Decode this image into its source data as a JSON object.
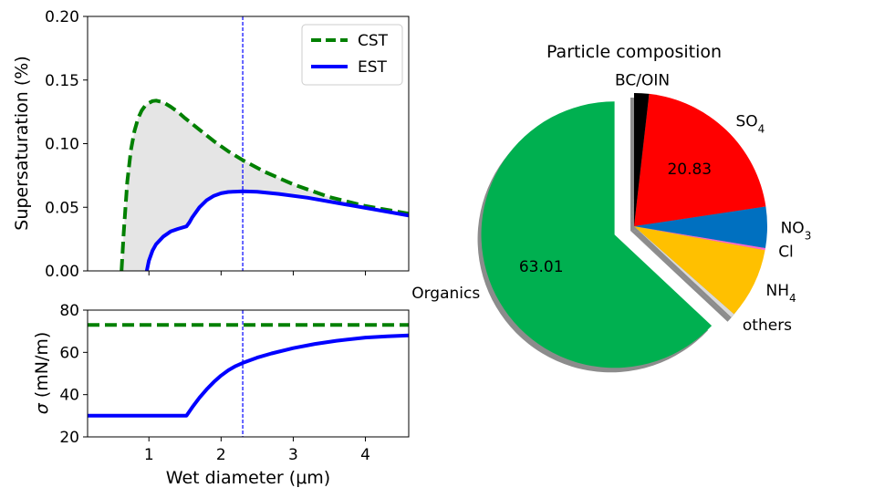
{
  "chart_data": [
    {
      "type": "line",
      "panel": "top-left",
      "ylabel": "Supersaturation (%)",
      "xlim": [
        0.15,
        4.6
      ],
      "ylim": [
        0,
        0.2
      ],
      "yticks": [
        "0.00",
        "0.05",
        "0.10",
        "0.15",
        "0.20"
      ],
      "xticks": [
        1,
        2,
        3,
        4
      ],
      "vline_x": 2.3,
      "shaded_between_series": true,
      "legend": {
        "position": "top-right"
      },
      "series": [
        {
          "name": "CST",
          "color": "#008000",
          "style": "dashed",
          "x": [
            0.62,
            0.65,
            0.7,
            0.75,
            0.8,
            0.85,
            0.9,
            0.95,
            1.0,
            1.05,
            1.1,
            1.2,
            1.3,
            1.4,
            1.5,
            1.7,
            1.9,
            2.1,
            2.3,
            2.6,
            3.0,
            3.5,
            4.0,
            4.6
          ],
          "y": [
            0.0,
            0.03,
            0.07,
            0.095,
            0.11,
            0.12,
            0.126,
            0.13,
            0.132,
            0.1335,
            0.1338,
            0.1325,
            0.129,
            0.125,
            0.12,
            0.111,
            0.102,
            0.094,
            0.087,
            0.078,
            0.068,
            0.058,
            0.051,
            0.045
          ]
        },
        {
          "name": "EST",
          "color": "#0000ff",
          "style": "solid",
          "x": [
            0.97,
            1.0,
            1.05,
            1.1,
            1.2,
            1.3,
            1.4,
            1.52,
            1.56,
            1.6,
            1.7,
            1.8,
            1.9,
            2.0,
            2.1,
            2.2,
            2.3,
            2.5,
            2.8,
            3.2,
            3.6,
            4.0,
            4.6
          ],
          "y": [
            0.0,
            0.008,
            0.016,
            0.021,
            0.027,
            0.031,
            0.033,
            0.035,
            0.038,
            0.042,
            0.05,
            0.0555,
            0.059,
            0.061,
            0.062,
            0.0623,
            0.0625,
            0.0622,
            0.0605,
            0.0575,
            0.0535,
            0.0495,
            0.0435
          ]
        }
      ]
    },
    {
      "type": "line",
      "panel": "bottom-left",
      "ylabel": "σ (mN/m)",
      "xlabel": "Wet diameter (μm)",
      "xlim": [
        0.15,
        4.6
      ],
      "ylim": [
        20,
        80
      ],
      "yticks": [
        "20",
        "40",
        "60",
        "80"
      ],
      "xticks": [
        "1",
        "2",
        "3",
        "4"
      ],
      "vline_x": 2.3,
      "series": [
        {
          "name": "CST",
          "color": "#008000",
          "style": "dashed",
          "x": [
            0.15,
            4.6
          ],
          "y": [
            73,
            73
          ]
        },
        {
          "name": "EST",
          "color": "#0000ff",
          "style": "solid",
          "x": [
            0.15,
            1.52,
            1.6,
            1.7,
            1.8,
            1.9,
            2.0,
            2.1,
            2.2,
            2.3,
            2.5,
            2.7,
            3.0,
            3.3,
            3.6,
            4.0,
            4.3,
            4.6
          ],
          "y": [
            30,
            30,
            34,
            38.5,
            42.5,
            46,
            49,
            51.5,
            53.5,
            55,
            57.5,
            59.5,
            62,
            64,
            65.5,
            67,
            67.6,
            68
          ]
        }
      ]
    },
    {
      "type": "pie",
      "panel": "right",
      "title": "Particle composition",
      "start_direction": "top",
      "direction": "counterclockwise",
      "slices": [
        {
          "key": "organics",
          "label": "Organics",
          "value": 63.01,
          "pct_label": "63.01",
          "color": "#00b050",
          "exploded": true
        },
        {
          "key": "others",
          "label": "others",
          "value": 0.5,
          "pct_label": "",
          "color": "#d9d9d9"
        },
        {
          "key": "nh4",
          "label": "NH",
          "sub": "4",
          "value": 8.6,
          "pct_label": "",
          "color": "#ffc000"
        },
        {
          "key": "cl",
          "label": "Cl",
          "value": 0.25,
          "pct_label": "",
          "color": "#ff66cc"
        },
        {
          "key": "no3",
          "label": "NO",
          "sub": "3",
          "value": 5.0,
          "pct_label": "",
          "color": "#0070c0"
        },
        {
          "key": "so4",
          "label": "SO",
          "sub": "4",
          "value": 20.83,
          "pct_label": "20.83",
          "color": "#ff0000"
        },
        {
          "key": "bc_oin",
          "label": "BC/OIN",
          "value": 1.8,
          "pct_label": "",
          "color": "#000000"
        }
      ]
    }
  ]
}
